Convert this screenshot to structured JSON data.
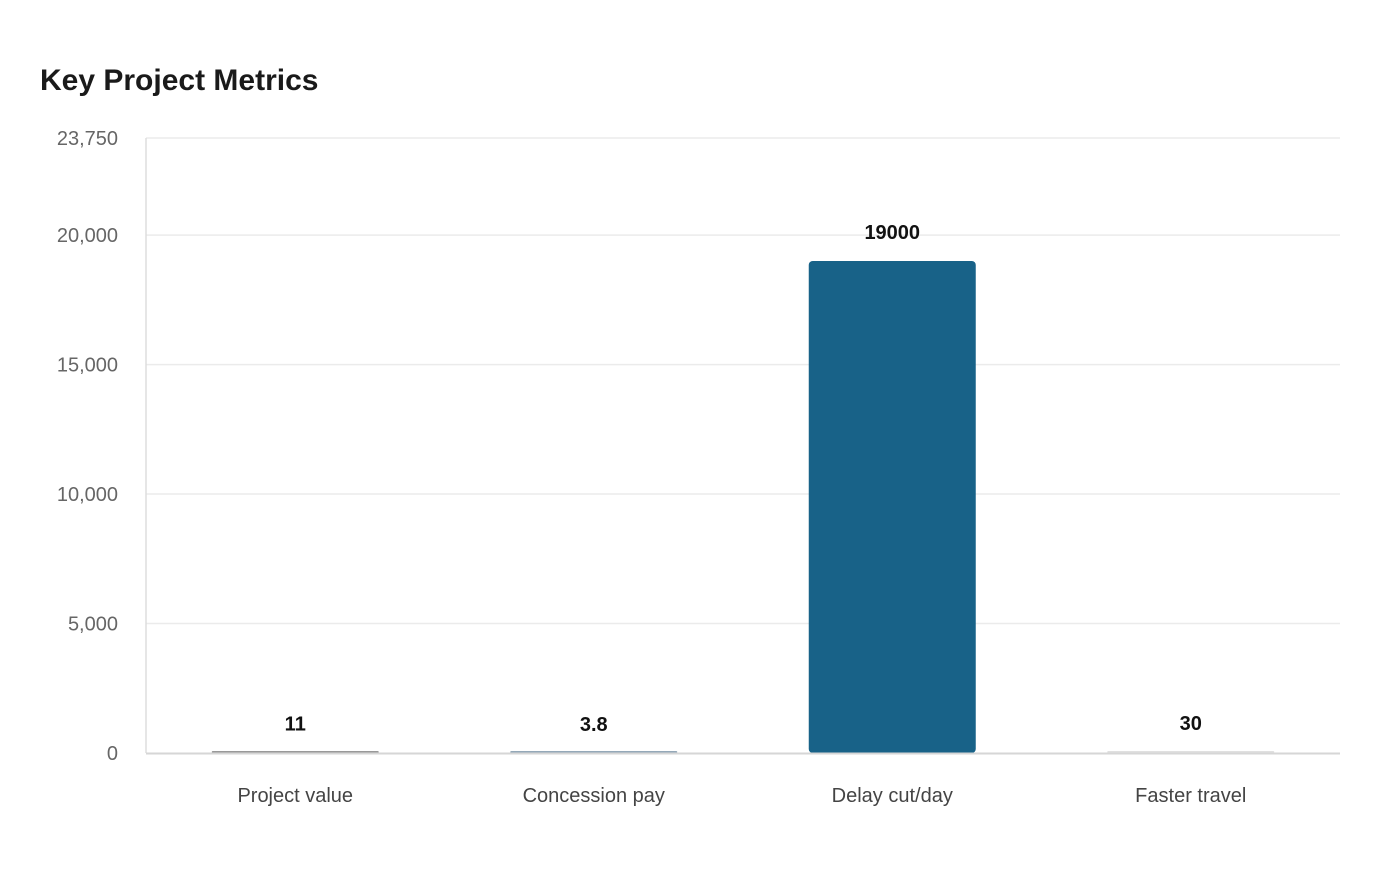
{
  "chart_data": {
    "type": "bar",
    "title": "Key Project Metrics",
    "categories": [
      "Project value",
      "Concession pay",
      "Delay cut/day",
      "Faster travel"
    ],
    "values": [
      11,
      3.8,
      19000,
      30
    ],
    "data_labels": [
      "11",
      "3.8",
      "19000",
      "30"
    ],
    "colors": [
      "#999999",
      "#94a8b8",
      "#186288",
      "#e0e0e0"
    ],
    "ylim": [
      0,
      23750
    ],
    "yticks": [
      0,
      5000,
      10000,
      15000,
      20000,
      23750
    ],
    "ytick_labels": [
      "0",
      "5,000",
      "10,000",
      "15,000",
      "20,000",
      "23,750"
    ],
    "grid": true,
    "xlabel": "",
    "ylabel": ""
  }
}
